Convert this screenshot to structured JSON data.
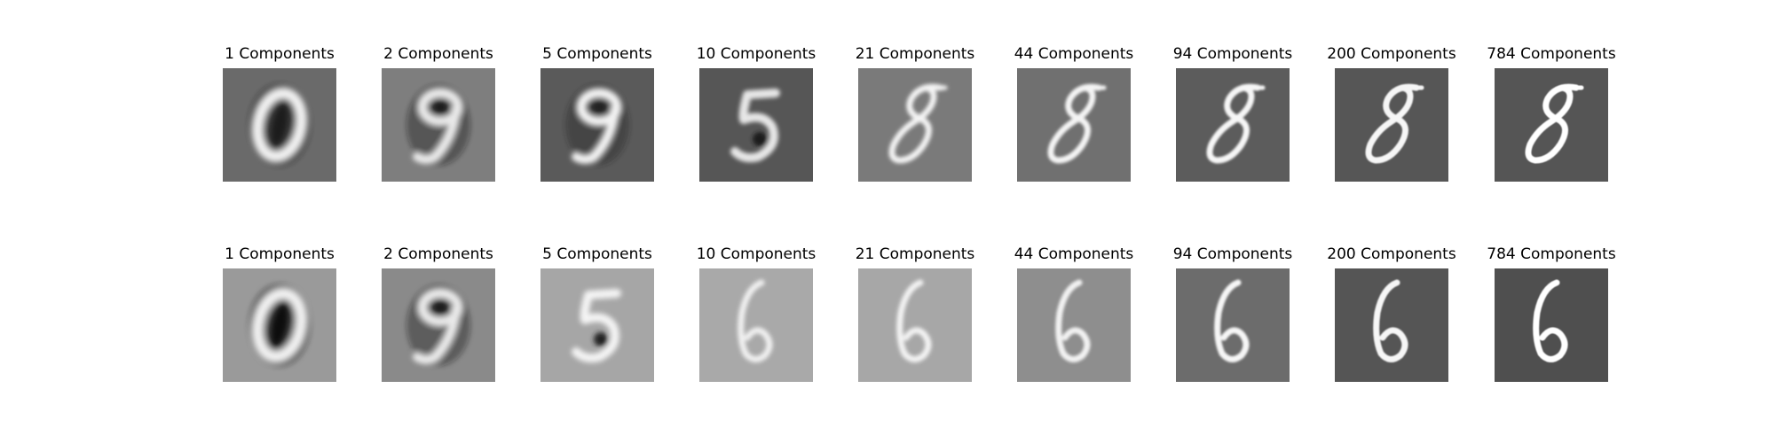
{
  "rows": [
    {
      "digit": "8",
      "panels": [
        {
          "title": "1 Components",
          "bg": "#6a6a6a",
          "bright": "#f0f0f0",
          "dark": "#1e1e1e",
          "blur": 3.2,
          "glyph": "0"
        },
        {
          "title": "2 Components",
          "bg": "#7e7e7e",
          "bright": "#e8e8e8",
          "dark": "#1c1c1c",
          "blur": 3.0,
          "glyph": "9"
        },
        {
          "title": "5 Components",
          "bg": "#5a5a5a",
          "bright": "#f2f2f2",
          "dark": "#222222",
          "blur": 2.8,
          "glyph": "9"
        },
        {
          "title": "10 Components",
          "bg": "#565656",
          "bright": "#e6e6e6",
          "dark": "#1a1a1a",
          "blur": 2.4,
          "glyph": "5"
        },
        {
          "title": "21 Components",
          "bg": "#7a7a7a",
          "bright": "#f4f4f4",
          "dark": "#202020",
          "blur": 2.0,
          "glyph": "8"
        },
        {
          "title": "44 Components",
          "bg": "#707070",
          "bright": "#f4f4f4",
          "dark": "#262626",
          "blur": 1.6,
          "glyph": "8"
        },
        {
          "title": "94 Components",
          "bg": "#5c5c5c",
          "bright": "#f6f6f6",
          "dark": "#2a2a2a",
          "blur": 1.2,
          "glyph": "8"
        },
        {
          "title": "200 Components",
          "bg": "#565656",
          "bright": "#f6f6f6",
          "dark": "#2c2c2c",
          "blur": 0.9,
          "glyph": "8"
        },
        {
          "title": "784 Components",
          "bg": "#555555",
          "bright": "#ffffff",
          "dark": "#2a2a2a",
          "blur": 0.4,
          "glyph": "8"
        }
      ]
    },
    {
      "digit": "6",
      "panels": [
        {
          "title": "1 Components",
          "bg": "#9a9a9a",
          "bright": "#f0f0f0",
          "dark": "#101010",
          "blur": 3.2,
          "glyph": "0"
        },
        {
          "title": "2 Components",
          "bg": "#8a8a8a",
          "bright": "#e8e8e8",
          "dark": "#1a1a1a",
          "blur": 3.0,
          "glyph": "9"
        },
        {
          "title": "5 Components",
          "bg": "#a6a6a6",
          "bright": "#f4f4f4",
          "dark": "#202020",
          "blur": 2.8,
          "glyph": "5"
        },
        {
          "title": "10 Components",
          "bg": "#a9a9a9",
          "bright": "#f2f2f2",
          "dark": "#222222",
          "blur": 2.4,
          "glyph": "6"
        },
        {
          "title": "21 Components",
          "bg": "#a7a7a7",
          "bright": "#f4f4f4",
          "dark": "#222222",
          "blur": 2.0,
          "glyph": "6"
        },
        {
          "title": "44 Components",
          "bg": "#8e8e8e",
          "bright": "#f2f2f2",
          "dark": "#202020",
          "blur": 1.6,
          "glyph": "6"
        },
        {
          "title": "94 Components",
          "bg": "#6c6c6c",
          "bright": "#f6f6f6",
          "dark": "#262626",
          "blur": 1.2,
          "glyph": "6"
        },
        {
          "title": "200 Components",
          "bg": "#555555",
          "bright": "#f6f6f6",
          "dark": "#242424",
          "blur": 0.9,
          "glyph": "6"
        },
        {
          "title": "784 Components",
          "bg": "#4f4f4f",
          "bright": "#ffffff",
          "dark": "#1e1e1e",
          "blur": 0.4,
          "glyph": "6"
        }
      ]
    }
  ]
}
